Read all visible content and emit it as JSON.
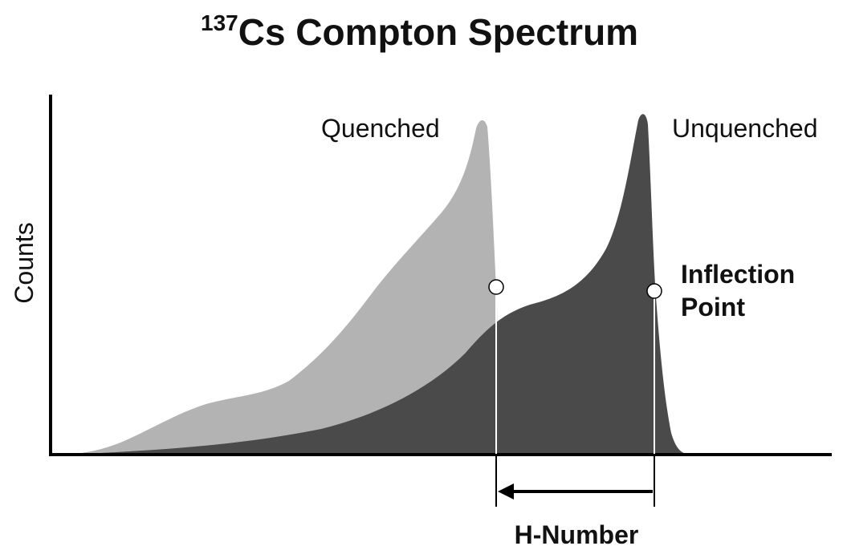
{
  "title": {
    "superscript": "137",
    "text": "Cs Compton Spectrum"
  },
  "y_axis_label": "Counts",
  "curves": {
    "quenched": "Quenched",
    "unquenched": "Unquenched"
  },
  "annotation": {
    "lines": [
      "Inflection",
      "Point"
    ]
  },
  "x_label": "H-Number"
}
